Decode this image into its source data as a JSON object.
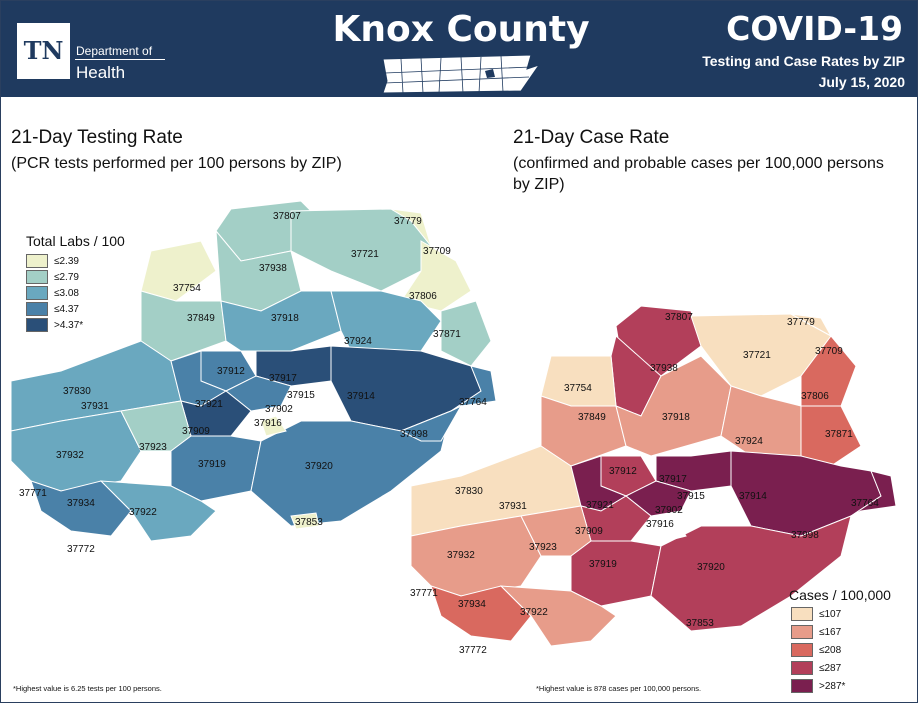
{
  "header": {
    "logo_abbrev": "TN",
    "logo_dept": "Department of",
    "logo_health": "Health",
    "title": "Knox County",
    "covid_title": "COVID-19",
    "subtitle": "Testing and Case Rates by ZIP",
    "date": "July 15, 2020"
  },
  "left_panel": {
    "title": "21-Day Testing Rate",
    "subtitle": "(PCR tests performed per 100 persons by ZIP)",
    "legend_title": "Total Labs / 100",
    "legend": [
      {
        "label": "≤2.39",
        "color": "#eef1cc"
      },
      {
        "label": "≤2.79",
        "color": "#a3cfc6"
      },
      {
        "label": "≤3.08",
        "color": "#6aa8bf"
      },
      {
        "label": "≤4.37",
        "color": "#4a81a8"
      },
      {
        "label": ">4.37*",
        "color": "#2a4f78"
      }
    ],
    "footnote": "*Highest value is 6.25 tests per 100 persons."
  },
  "right_panel": {
    "title": "21-Day Case Rate",
    "subtitle_line1": "(confirmed and probable cases per 100,000 persons",
    "subtitle_line2": "by ZIP)",
    "legend_title": "Cases / 100,000",
    "legend": [
      {
        "label": "≤107",
        "color": "#f8dfbf"
      },
      {
        "label": "≤167",
        "color": "#e79c8a"
      },
      {
        "label": "≤208",
        "color": "#d9695f"
      },
      {
        "label": "≤287",
        "color": "#b23f5a"
      },
      {
        "label": ">287*",
        "color": "#7a1f4f"
      }
    ],
    "footnote": "*Highest value is 878 cases per 100,000 persons."
  },
  "zip_labels": [
    "37807",
    "37779",
    "37721",
    "37709",
    "37938",
    "37754",
    "37806",
    "37849",
    "37918",
    "37871",
    "37924",
    "37912",
    "37917",
    "37830",
    "37931",
    "37915",
    "37914",
    "37764",
    "37921",
    "37902",
    "37909",
    "37916",
    "37998",
    "37923",
    "37932",
    "37919",
    "37920",
    "37771",
    "37934",
    "37922",
    "37853",
    "37772"
  ]
}
